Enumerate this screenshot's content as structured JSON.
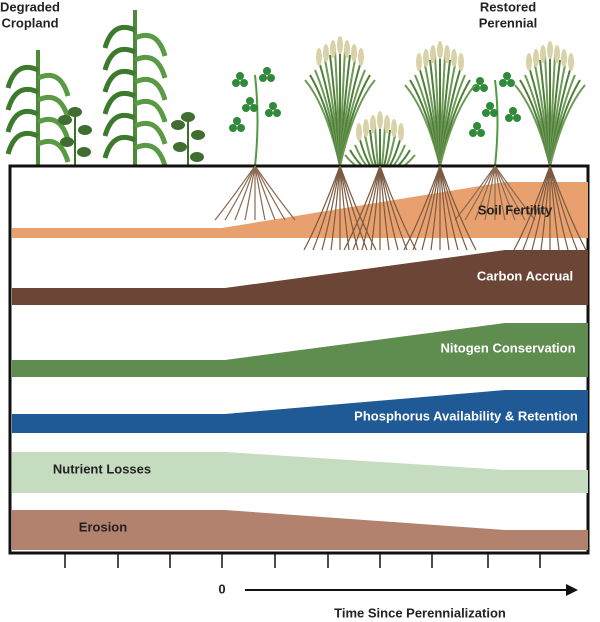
{
  "header": {
    "left": [
      "Degraded",
      "Cropland"
    ],
    "right": [
      "Restored",
      "Perennial"
    ]
  },
  "bands": [
    "Soil Fertility",
    "Carbon Accrual",
    "Nitogen Conservation",
    "Phosphorus Availability & Retention",
    "Nutrient Losses",
    "Erosion"
  ],
  "axis": {
    "origin": "0",
    "label": "Time Since Perennialization"
  }
}
